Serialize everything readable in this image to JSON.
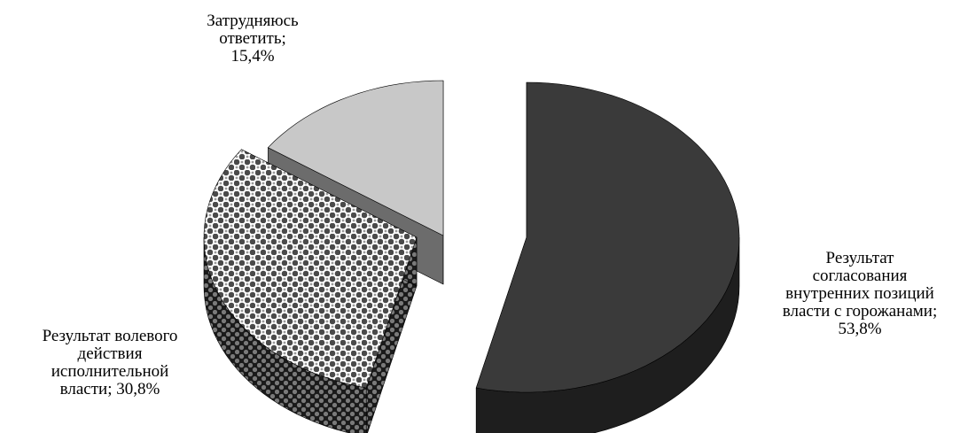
{
  "chart_data": {
    "type": "pie",
    "style": "3d-exploded",
    "title": "",
    "slices": [
      {
        "label": [
          "Результат",
          "согласования",
          "внутренних позиций",
          "власти  с горожанами;",
          "53,8%"
        ],
        "value": 53.8,
        "fill": "dark-gray"
      },
      {
        "label": [
          "Результат волевого",
          "действия",
          "исполнительной",
          "власти; 30,8%"
        ],
        "value": 30.8,
        "fill": "checkered-pattern"
      },
      {
        "label": [
          "Затрудняюсь",
          "ответить;",
          "15,4%"
        ],
        "value": 15.4,
        "fill": "light-gray"
      }
    ],
    "legend": "none"
  },
  "colors": {
    "slice0_top": "#3a3a3a",
    "slice0_side": "#1e1e1e",
    "slice1_side": "#555555",
    "slice2_top": "#c8c8c8",
    "slice2_side": "#6c6c6c"
  }
}
